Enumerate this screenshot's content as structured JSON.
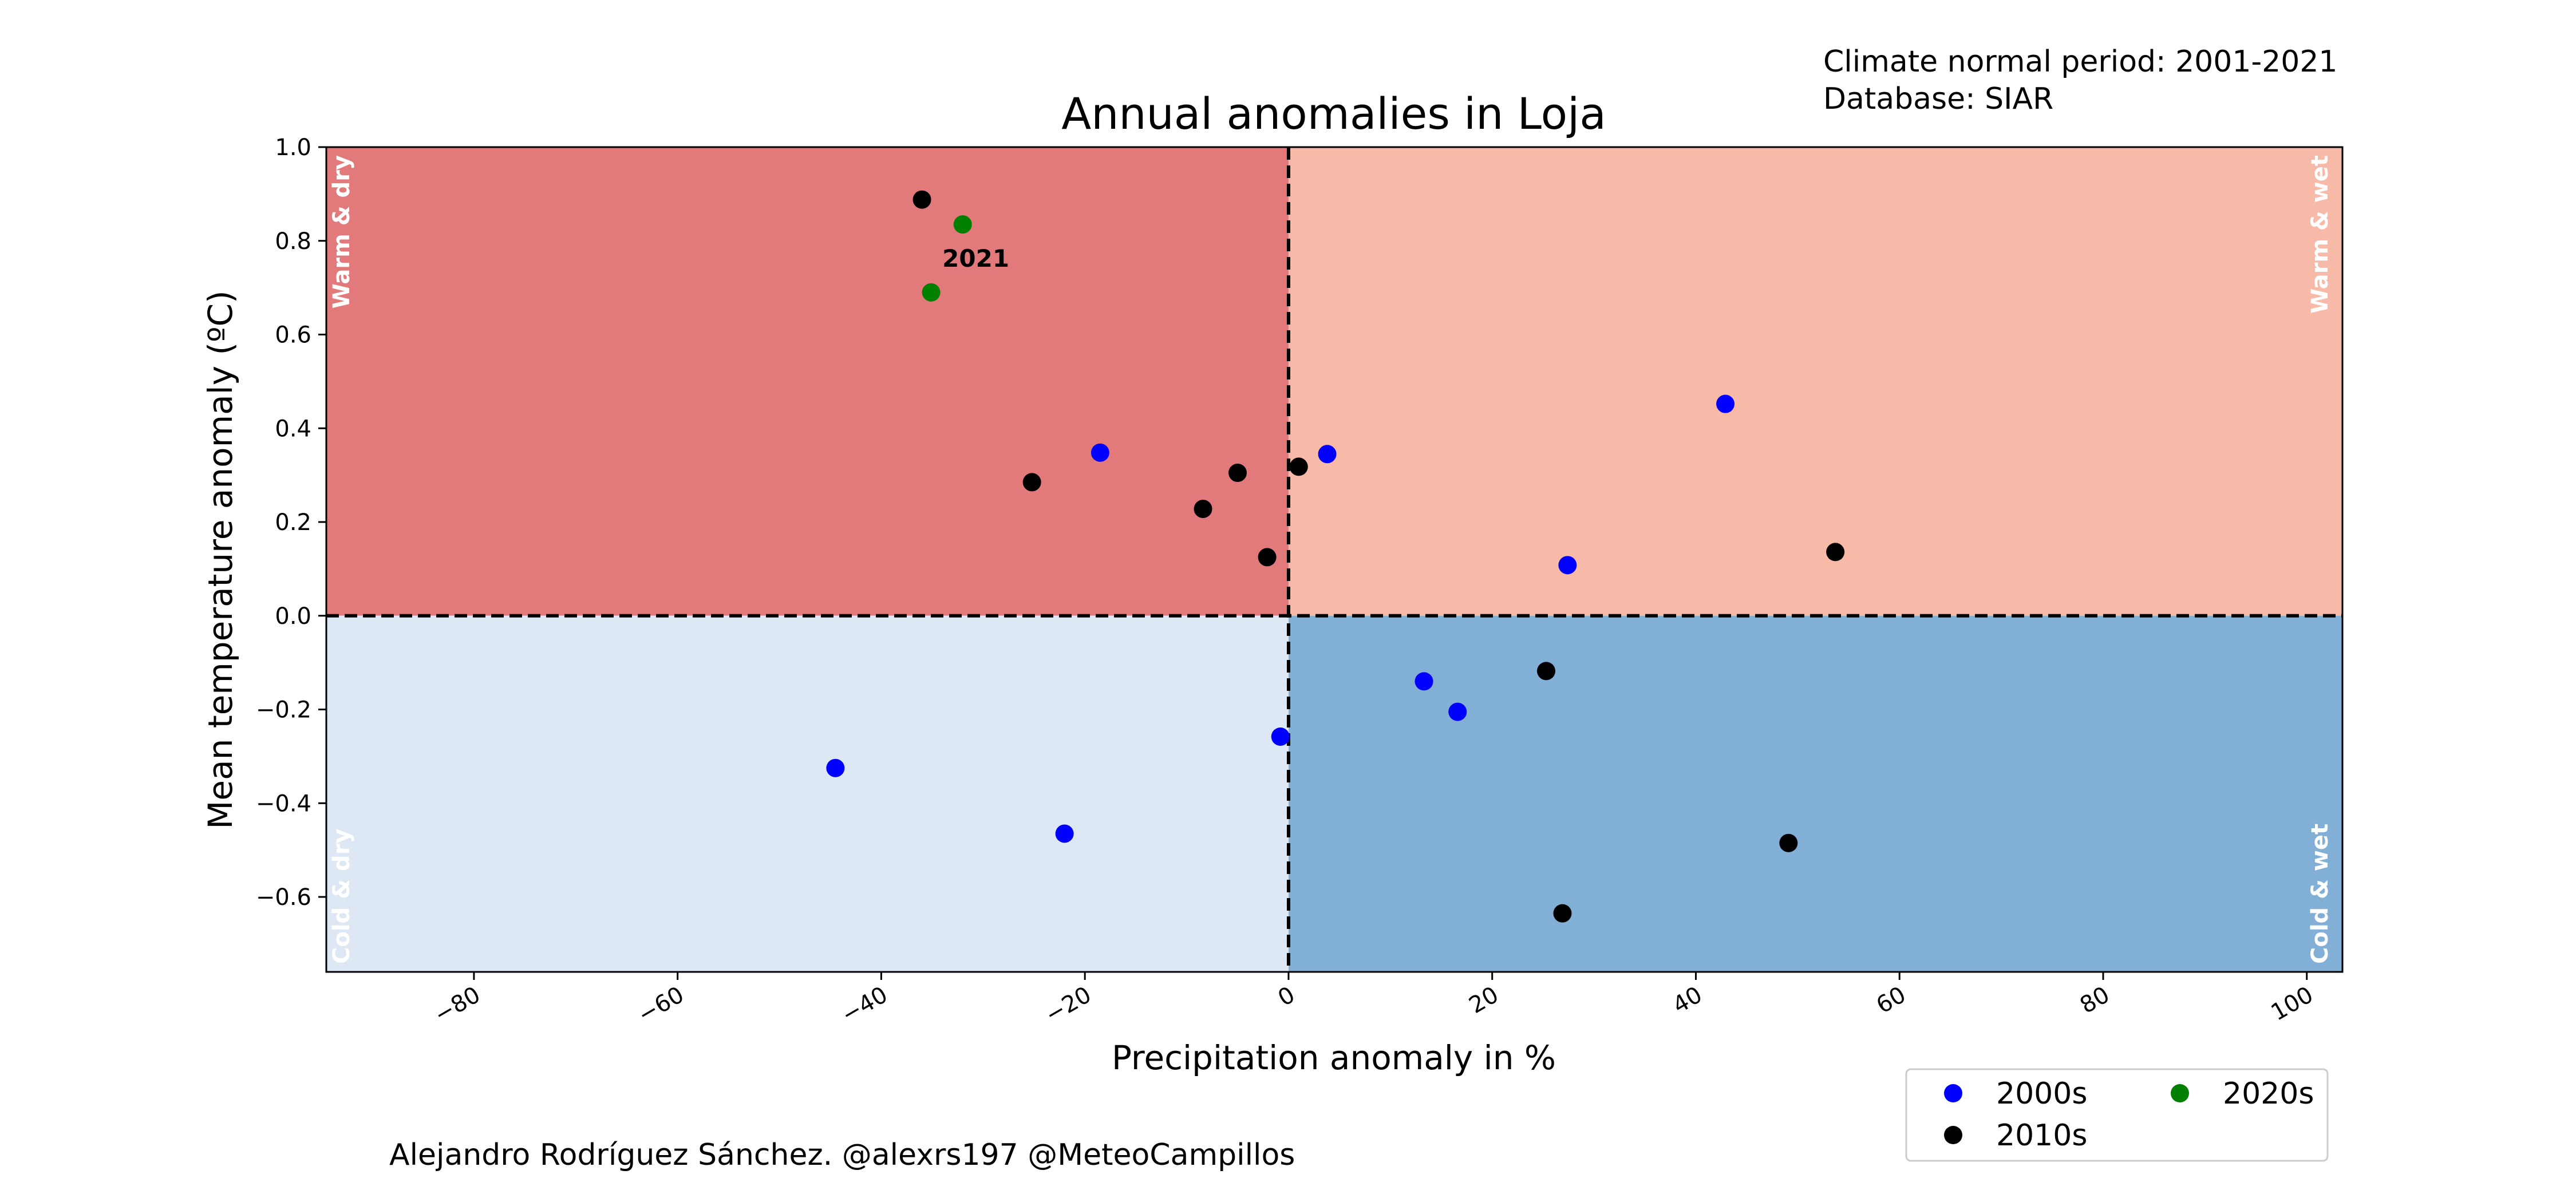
{
  "header": {
    "note_line1": "Climate normal period: 2001-2021",
    "note_line2": "Database: SIAR"
  },
  "footer": {
    "credit": "Alejandro Rodríguez Sánchez. @alexrs197 @MeteoCampillos"
  },
  "chart_data": {
    "type": "scatter",
    "title": "Annual anomalies in Loja",
    "xlabel": "Precipitation anomaly in %",
    "ylabel": "Mean temperature anomaly (ºC)",
    "xlim": [
      -94.5,
      103.5
    ],
    "ylim": [
      -0.76,
      1.0
    ],
    "xticks": [
      -80,
      -60,
      -40,
      -20,
      0,
      20,
      40,
      60,
      80,
      100
    ],
    "xtick_labels": [
      "−80",
      "−60",
      "−40",
      "−20",
      "0",
      "20",
      "40",
      "60",
      "80",
      "100"
    ],
    "yticks": [
      1.0,
      0.8,
      0.6,
      0.4,
      0.2,
      0.0,
      -0.2,
      -0.4,
      -0.6
    ],
    "ytick_labels": [
      "1.0",
      "0.8",
      "0.6",
      "0.4",
      "0.2",
      "0.0",
      "−0.2",
      "−0.4",
      "−0.6"
    ],
    "grid": false,
    "reference_lines": {
      "x": 0,
      "y": 0,
      "style": "dashed"
    },
    "quadrants": [
      {
        "label": "Warm & dry",
        "color": "#e27a7c",
        "x_side": "negative",
        "y_side": "positive"
      },
      {
        "label": "Warm & wet",
        "color": "#f7b9a8",
        "x_side": "positive",
        "y_side": "positive"
      },
      {
        "label": "Cold & dry",
        "color": "#dde8f4",
        "x_side": "negative",
        "y_side": "negative"
      },
      {
        "label": "Cold & wet",
        "color": "#82afd6",
        "x_side": "positive",
        "y_side": "negative"
      }
    ],
    "series": [
      {
        "name": "2000s",
        "color": "#0000ff",
        "points": [
          {
            "x": -44.5,
            "y": -0.325
          },
          {
            "x": -22.0,
            "y": -0.465
          },
          {
            "x": -18.5,
            "y": 0.348
          },
          {
            "x": -0.8,
            "y": -0.258
          },
          {
            "x": 3.8,
            "y": 0.345
          },
          {
            "x": 13.3,
            "y": -0.14
          },
          {
            "x": 16.6,
            "y": -0.205
          },
          {
            "x": 27.4,
            "y": 0.108
          },
          {
            "x": 42.9,
            "y": 0.452
          }
        ]
      },
      {
        "name": "2010s",
        "color": "#000000",
        "points": [
          {
            "x": -36.0,
            "y": 0.888
          },
          {
            "x": -25.2,
            "y": 0.285
          },
          {
            "x": -8.4,
            "y": 0.228
          },
          {
            "x": -5.0,
            "y": 0.305
          },
          {
            "x": -2.1,
            "y": 0.125
          },
          {
            "x": 1.0,
            "y": 0.318
          },
          {
            "x": 25.3,
            "y": -0.118
          },
          {
            "x": 26.9,
            "y": -0.635
          },
          {
            "x": 49.1,
            "y": -0.485
          },
          {
            "x": 53.7,
            "y": 0.136
          }
        ]
      },
      {
        "name": "2020s",
        "color": "#008000",
        "points": [
          {
            "x": -32.0,
            "y": 0.835
          },
          {
            "x": -35.1,
            "y": 0.69
          }
        ]
      }
    ],
    "annotations": [
      {
        "text": "2021",
        "x": -34.0,
        "y": 0.745
      }
    ],
    "legend": {
      "placement": "bottom-right, outside plot",
      "ncol": 2
    }
  }
}
